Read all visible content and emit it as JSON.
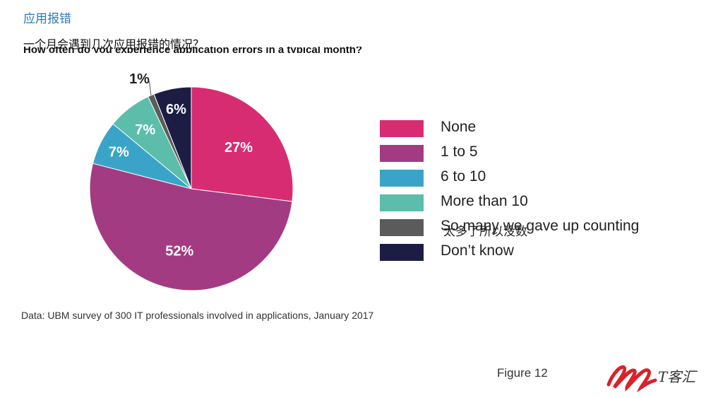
{
  "header": {
    "title": "应用报错",
    "question": "一个月会遇到几次应用报错的情况？",
    "overlap_text": "How often do you experience application errors in a typical month?"
  },
  "chart_data": {
    "type": "pie",
    "categories": [
      "None",
      "1 to 5",
      "6 to 10",
      "More than 10",
      "So many we gave up counting",
      "Don’t know"
    ],
    "values": [
      27,
      52,
      7,
      7,
      1,
      6
    ],
    "value_labels": [
      "27%",
      "52%",
      "7%",
      "7%",
      "1%",
      "6%"
    ],
    "colors": [
      "#d72c72",
      "#a33b82",
      "#3aa4c8",
      "#5cbdab",
      "#5b5b5b",
      "#1c1c44"
    ],
    "start_angle_deg": 0,
    "direction": "clockwise",
    "legend_position": "right"
  },
  "legend_overlay_cn": "太多了所以没数",
  "source_note": "Data: UBM survey of 300 IT professionals involved in applications, January 2017",
  "figure_label": "Figure 12",
  "watermark": {
    "text": "T客汇",
    "colors": {
      "mark": "#d8232a",
      "text": "#333333"
    }
  }
}
